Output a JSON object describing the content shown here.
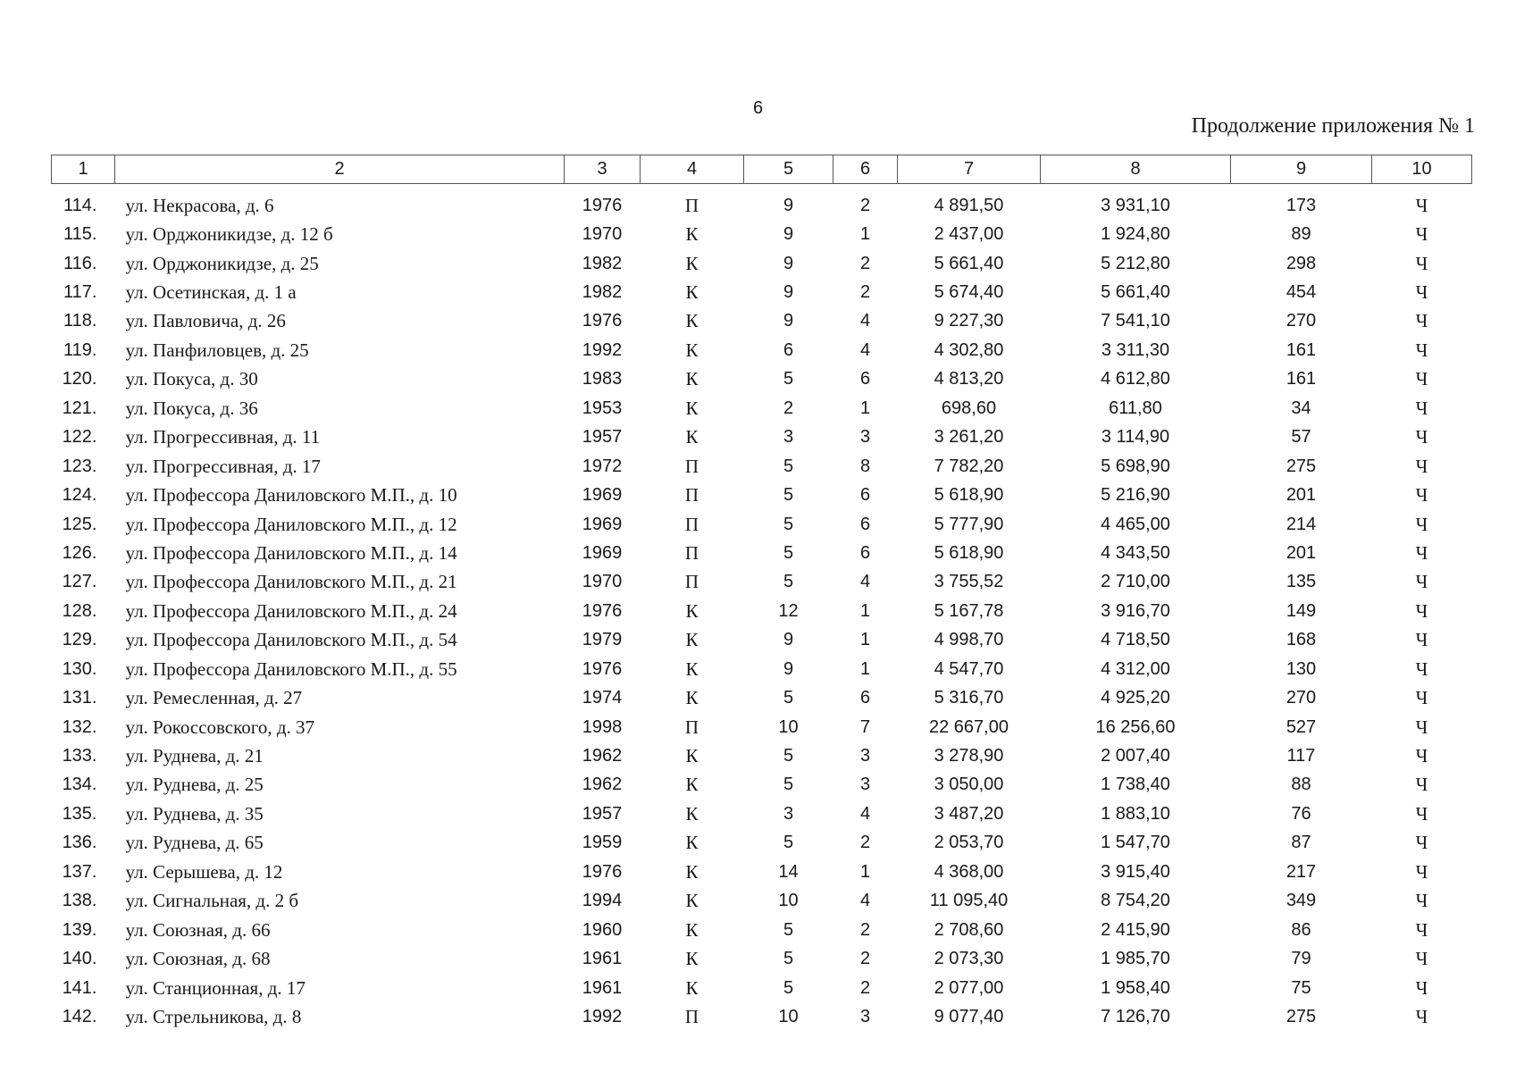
{
  "page_number": "6",
  "continuation_title": "Продолжение приложения № 1",
  "columns": [
    "1",
    "2",
    "3",
    "4",
    "5",
    "6",
    "7",
    "8",
    "9",
    "10"
  ],
  "rows": [
    [
      "114.",
      "ул. Некрасова, д. 6",
      "1976",
      "П",
      "9",
      "2",
      "4 891,50",
      "3 931,10",
      "173",
      "Ч"
    ],
    [
      "115.",
      "ул. Орджоникидзе, д. 12 б",
      "1970",
      "К",
      "9",
      "1",
      "2 437,00",
      "1 924,80",
      "89",
      "Ч"
    ],
    [
      "116.",
      "ул. Орджоникидзе, д. 25",
      "1982",
      "К",
      "9",
      "2",
      "5 661,40",
      "5 212,80",
      "298",
      "Ч"
    ],
    [
      "117.",
      "ул. Осетинская, д. 1 а",
      "1982",
      "К",
      "9",
      "2",
      "5 674,40",
      "5 661,40",
      "454",
      "Ч"
    ],
    [
      "118.",
      "ул. Павловича, д. 26",
      "1976",
      "К",
      "9",
      "4",
      "9 227,30",
      "7 541,10",
      "270",
      "Ч"
    ],
    [
      "119.",
      "ул. Панфиловцев, д. 25",
      "1992",
      "К",
      "6",
      "4",
      "4 302,80",
      "3 311,30",
      "161",
      "Ч"
    ],
    [
      "120.",
      "ул. Покуса, д. 30",
      "1983",
      "К",
      "5",
      "6",
      "4 813,20",
      "4 612,80",
      "161",
      "Ч"
    ],
    [
      "121.",
      "ул. Покуса, д. 36",
      "1953",
      "К",
      "2",
      "1",
      "698,60",
      "611,80",
      "34",
      "Ч"
    ],
    [
      "122.",
      "ул. Прогрессивная, д. 11",
      "1957",
      "К",
      "3",
      "3",
      "3 261,20",
      "3 114,90",
      "57",
      "Ч"
    ],
    [
      "123.",
      "ул. Прогрессивная, д. 17",
      "1972",
      "П",
      "5",
      "8",
      "7 782,20",
      "5 698,90",
      "275",
      "Ч"
    ],
    [
      "124.",
      "ул. Профессора Даниловского М.П., д. 10",
      "1969",
      "П",
      "5",
      "6",
      "5 618,90",
      "5 216,90",
      "201",
      "Ч"
    ],
    [
      "125.",
      "ул. Профессора Даниловского М.П., д. 12",
      "1969",
      "П",
      "5",
      "6",
      "5 777,90",
      "4 465,00",
      "214",
      "Ч"
    ],
    [
      "126.",
      "ул. Профессора Даниловского М.П., д. 14",
      "1969",
      "П",
      "5",
      "6",
      "5 618,90",
      "4 343,50",
      "201",
      "Ч"
    ],
    [
      "127.",
      "ул. Профессора Даниловского М.П., д. 21",
      "1970",
      "П",
      "5",
      "4",
      "3 755,52",
      "2 710,00",
      "135",
      "Ч"
    ],
    [
      "128.",
      "ул. Профессора Даниловского М.П., д. 24",
      "1976",
      "К",
      "12",
      "1",
      "5 167,78",
      "3 916,70",
      "149",
      "Ч"
    ],
    [
      "129.",
      "ул. Профессора Даниловского М.П., д. 54",
      "1979",
      "К",
      "9",
      "1",
      "4 998,70",
      "4 718,50",
      "168",
      "Ч"
    ],
    [
      "130.",
      "ул. Профессора Даниловского М.П., д. 55",
      "1976",
      "К",
      "9",
      "1",
      "4 547,70",
      "4 312,00",
      "130",
      "Ч"
    ],
    [
      "131.",
      "ул. Ремесленная, д. 27",
      "1974",
      "К",
      "5",
      "6",
      "5 316,70",
      "4 925,20",
      "270",
      "Ч"
    ],
    [
      "132.",
      "ул. Рокоссовского, д. 37",
      "1998",
      "П",
      "10",
      "7",
      "22 667,00",
      "16 256,60",
      "527",
      "Ч"
    ],
    [
      "133.",
      "ул. Руднева, д. 21",
      "1962",
      "К",
      "5",
      "3",
      "3 278,90",
      "2 007,40",
      "117",
      "Ч"
    ],
    [
      "134.",
      "ул. Руднева, д. 25",
      "1962",
      "К",
      "5",
      "3",
      "3 050,00",
      "1 738,40",
      "88",
      "Ч"
    ],
    [
      "135.",
      "ул. Руднева, д. 35",
      "1957",
      "К",
      "3",
      "4",
      "3 487,20",
      "1 883,10",
      "76",
      "Ч"
    ],
    [
      "136.",
      "ул. Руднева, д. 65",
      "1959",
      "К",
      "5",
      "2",
      "2 053,70",
      "1 547,70",
      "87",
      "Ч"
    ],
    [
      "137.",
      "ул. Серышева, д. 12",
      "1976",
      "К",
      "14",
      "1",
      "4 368,00",
      "3 915,40",
      "217",
      "Ч"
    ],
    [
      "138.",
      "ул. Сигнальная, д. 2 б",
      "1994",
      "К",
      "10",
      "4",
      "11 095,40",
      "8 754,20",
      "349",
      "Ч"
    ],
    [
      "139.",
      "ул. Союзная, д. 66",
      "1960",
      "К",
      "5",
      "2",
      "2 708,60",
      "2 415,90",
      "86",
      "Ч"
    ],
    [
      "140.",
      "ул. Союзная, д. 68",
      "1961",
      "К",
      "5",
      "2",
      "2 073,30",
      "1 985,70",
      "79",
      "Ч"
    ],
    [
      "141.",
      "ул. Станционная, д. 17",
      "1961",
      "К",
      "5",
      "2",
      "2 077,00",
      "1 958,40",
      "75",
      "Ч"
    ],
    [
      "142.",
      "ул. Стрельникова, д. 8",
      "1992",
      "П",
      "10",
      "3",
      "9 077,40",
      "7 126,70",
      "275",
      "Ч"
    ]
  ]
}
